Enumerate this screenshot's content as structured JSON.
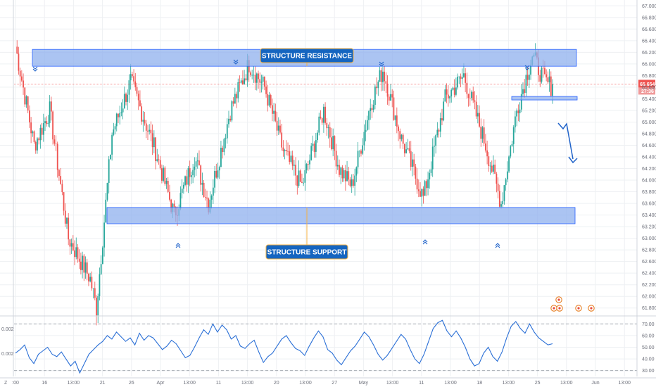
{
  "colors": {
    "up": "#26a69a",
    "down": "#ef5350",
    "zone_fill": "#8fb0ee",
    "zone_stroke": "#2962ff",
    "label_bg": "#1565c0",
    "label_border": "#f5b041",
    "projection": "#1f62c9",
    "oscillator": "#2a6fd6",
    "price_tag": "#ef5350",
    "grid": "#eef0f3",
    "axis_text": "#6a6d78"
  },
  "chart_data": [
    {
      "type": "candlestick",
      "title": "",
      "price_axis": {
        "ylim": [
          61.7,
          67.1
        ],
        "ticks": [
          "67.000",
          "66.800",
          "66.600",
          "66.400",
          "66.200",
          "66.000",
          "65.800",
          "65.600",
          "65.400",
          "65.200",
          "65.000",
          "64.800",
          "64.600",
          "64.400",
          "64.200",
          "64.000",
          "63.800",
          "63.600",
          "63.400",
          "63.200",
          "63.000",
          "62.800",
          "62.600",
          "62.400",
          "62.200",
          "62.000",
          "61.800"
        ]
      },
      "time_axis": {
        "ticks": [
          ":00",
          "16",
          "13:00",
          "21",
          "26",
          "Apr",
          "13:00",
          "11",
          "13:00",
          "20",
          "13:00",
          "27",
          "May",
          "13:00",
          "11",
          "13:00",
          "18",
          "13:00",
          "25",
          "13:00",
          "Jun",
          "13:00"
        ]
      },
      "key_points": {
        "start": 66.3,
        "spike_low": 61.8,
        "rally": 65.7,
        "apr_low": 63.4,
        "apr_high": 66.0,
        "mid_low": 63.9,
        "may_high": 65.9,
        "may_low": 63.6,
        "jun_high": 65.8,
        "jun_low": 63.5,
        "final_high": 66.15,
        "last": 65.654
      },
      "zones": [
        {
          "name": "STRUCTURE RESISTANCE",
          "low": 65.96,
          "high": 66.25
        },
        {
          "name": "STRUCTURE SUPPORT",
          "low": 63.25,
          "high": 63.53
        },
        {
          "name": "",
          "low": 65.38,
          "high": 65.44
        }
      ],
      "last_price": "65.654",
      "countdown": "27:36",
      "markers": {
        "down_chevron": "chevron-down-icon",
        "up_chevron": "chevron-up-icon"
      }
    },
    {
      "type": "line",
      "title": "",
      "ylim": [
        25,
        75
      ],
      "ticks": [
        "70.00",
        "60.00",
        "50.00",
        "40.00",
        "30.00"
      ],
      "dashed_levels": [
        70,
        30
      ],
      "left_labels": [
        "0.002",
        "0.002"
      ],
      "series": [
        {
          "values": [
            45,
            48,
            52,
            41,
            36,
            44,
            47,
            50,
            44,
            42,
            46,
            40,
            34,
            38,
            28,
            36,
            44,
            48,
            52,
            55,
            60,
            57,
            63,
            59,
            55,
            58,
            52,
            62,
            56,
            60,
            58,
            53,
            48,
            51,
            56,
            53,
            47,
            41,
            43,
            50,
            58,
            65,
            61,
            70,
            63,
            69,
            65,
            57,
            60,
            51,
            49,
            53,
            56,
            46,
            37,
            42,
            45,
            51,
            57,
            60,
            54,
            49,
            47,
            43,
            51,
            58,
            64,
            59,
            48,
            45,
            39,
            35,
            41,
            47,
            51,
            57,
            63,
            59,
            52,
            44,
            39,
            43,
            49,
            55,
            61,
            57,
            48,
            40,
            36,
            44,
            55,
            66,
            71,
            73,
            64,
            59,
            64,
            58,
            50,
            40,
            34,
            36,
            45,
            50,
            42,
            38,
            46,
            58,
            68,
            72,
            66,
            62,
            70,
            63,
            58,
            55,
            52,
            53
          ]
        }
      ]
    }
  ],
  "misc": {
    "axis_corner_label": "Z"
  }
}
